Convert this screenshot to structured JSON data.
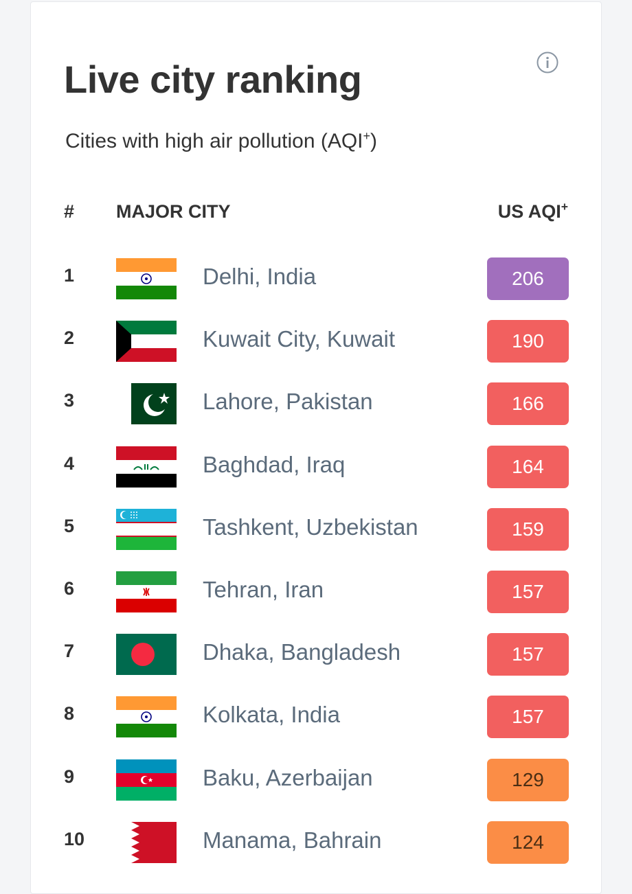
{
  "header": {
    "title": "Live city ranking",
    "subtitle_text": "Cities with high air pollution (AQI",
    "subtitle_sup": "+",
    "subtitle_close": ")",
    "info_icon": "info-circle-icon"
  },
  "table": {
    "col_rank": "#",
    "col_city": "MAJOR CITY",
    "col_aqi": "US AQI",
    "col_aqi_sup": "+"
  },
  "colors": {
    "purple": "#a16fbd",
    "red": "#f2605f",
    "orange": "#fb8d46",
    "city_text": "#5b6b7b",
    "heading_text": "#333333"
  },
  "rows": [
    {
      "rank": "1",
      "flag": "india-flag",
      "city": "Delhi, India",
      "aqi": "206",
      "level": "purple"
    },
    {
      "rank": "2",
      "flag": "kuwait-flag",
      "city": "Kuwait City, Kuwait",
      "aqi": "190",
      "level": "red"
    },
    {
      "rank": "3",
      "flag": "pakistan-flag",
      "city": "Lahore, Pakistan",
      "aqi": "166",
      "level": "red"
    },
    {
      "rank": "4",
      "flag": "iraq-flag",
      "city": "Baghdad, Iraq",
      "aqi": "164",
      "level": "red"
    },
    {
      "rank": "5",
      "flag": "uzbekistan-flag",
      "city": "Tashkent, Uzbekistan",
      "aqi": "159",
      "level": "red"
    },
    {
      "rank": "6",
      "flag": "iran-flag",
      "city": "Tehran, Iran",
      "aqi": "157",
      "level": "red"
    },
    {
      "rank": "7",
      "flag": "bangladesh-flag",
      "city": "Dhaka, Bangladesh",
      "aqi": "157",
      "level": "red"
    },
    {
      "rank": "8",
      "flag": "india-flag",
      "city": "Kolkata, India",
      "aqi": "157",
      "level": "red"
    },
    {
      "rank": "9",
      "flag": "azerbaijan-flag",
      "city": "Baku, Azerbaijan",
      "aqi": "129",
      "level": "orange"
    },
    {
      "rank": "10",
      "flag": "bahrain-flag",
      "city": "Manama, Bahrain",
      "aqi": "124",
      "level": "orange"
    }
  ]
}
